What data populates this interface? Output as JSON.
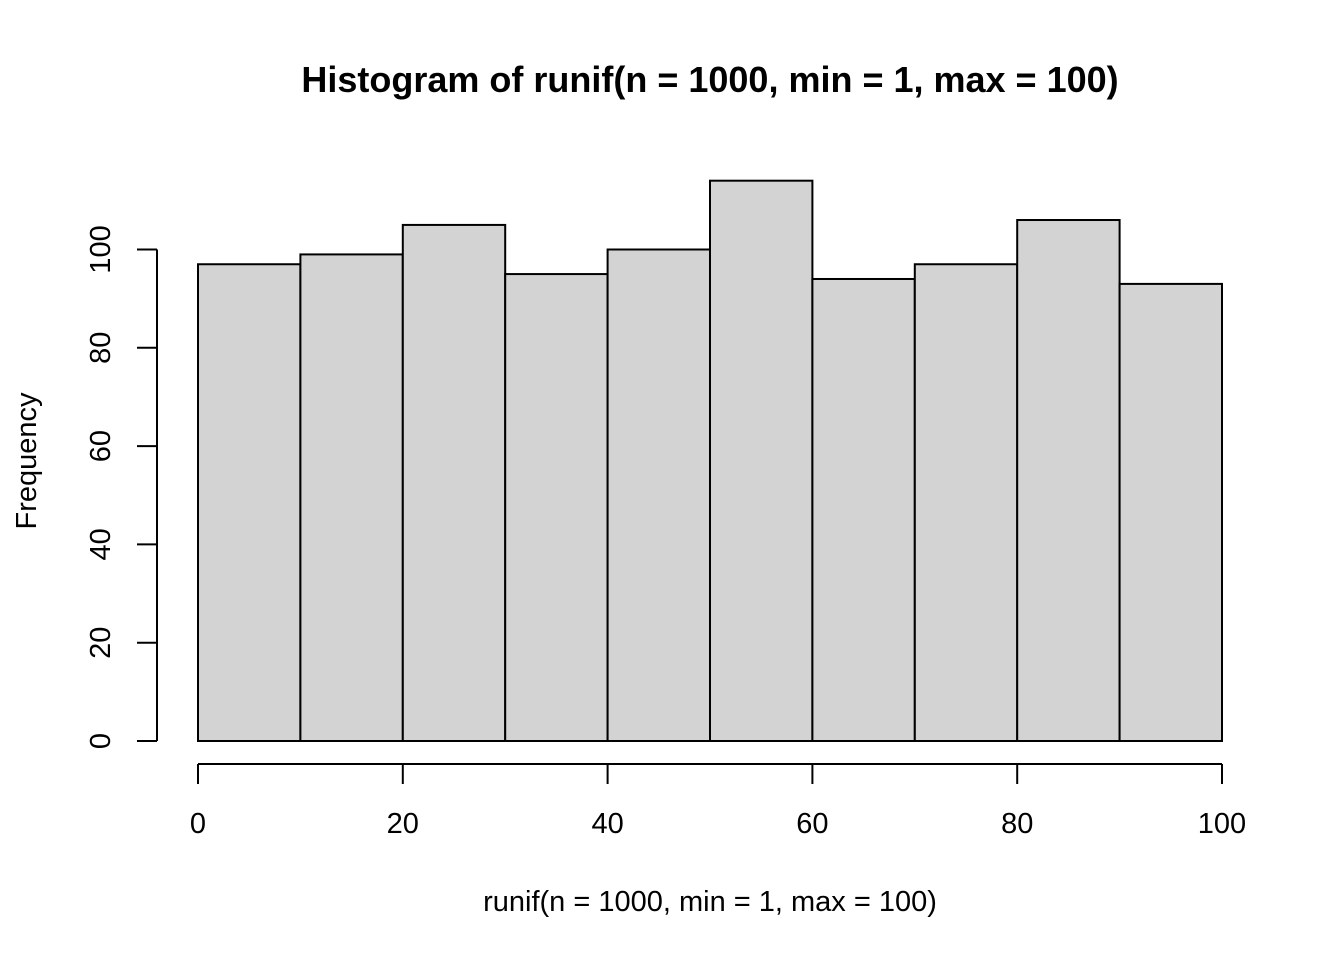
{
  "chart_data": {
    "type": "bar",
    "title": "Histogram of runif(n = 1000, min = 1, max = 100)",
    "xlabel": "runif(n = 1000, min = 1, max = 100)",
    "ylabel": "Frequency",
    "bins": [
      {
        "start": 0,
        "end": 10,
        "value": 97
      },
      {
        "start": 10,
        "end": 20,
        "value": 99
      },
      {
        "start": 20,
        "end": 30,
        "value": 105
      },
      {
        "start": 30,
        "end": 40,
        "value": 95
      },
      {
        "start": 40,
        "end": 50,
        "value": 100
      },
      {
        "start": 50,
        "end": 60,
        "value": 114
      },
      {
        "start": 60,
        "end": 70,
        "value": 94
      },
      {
        "start": 70,
        "end": 80,
        "value": 97
      },
      {
        "start": 80,
        "end": 90,
        "value": 106
      },
      {
        "start": 90,
        "end": 100,
        "value": 93
      }
    ],
    "xlim": [
      0,
      100
    ],
    "ylim": [
      0,
      114
    ],
    "x_ticks": [
      0,
      20,
      40,
      60,
      80,
      100
    ],
    "y_ticks": [
      0,
      20,
      40,
      60,
      80,
      100
    ],
    "bar_color": "#d3d3d3",
    "border_color": "#000000",
    "grid": false,
    "legend": "none"
  }
}
